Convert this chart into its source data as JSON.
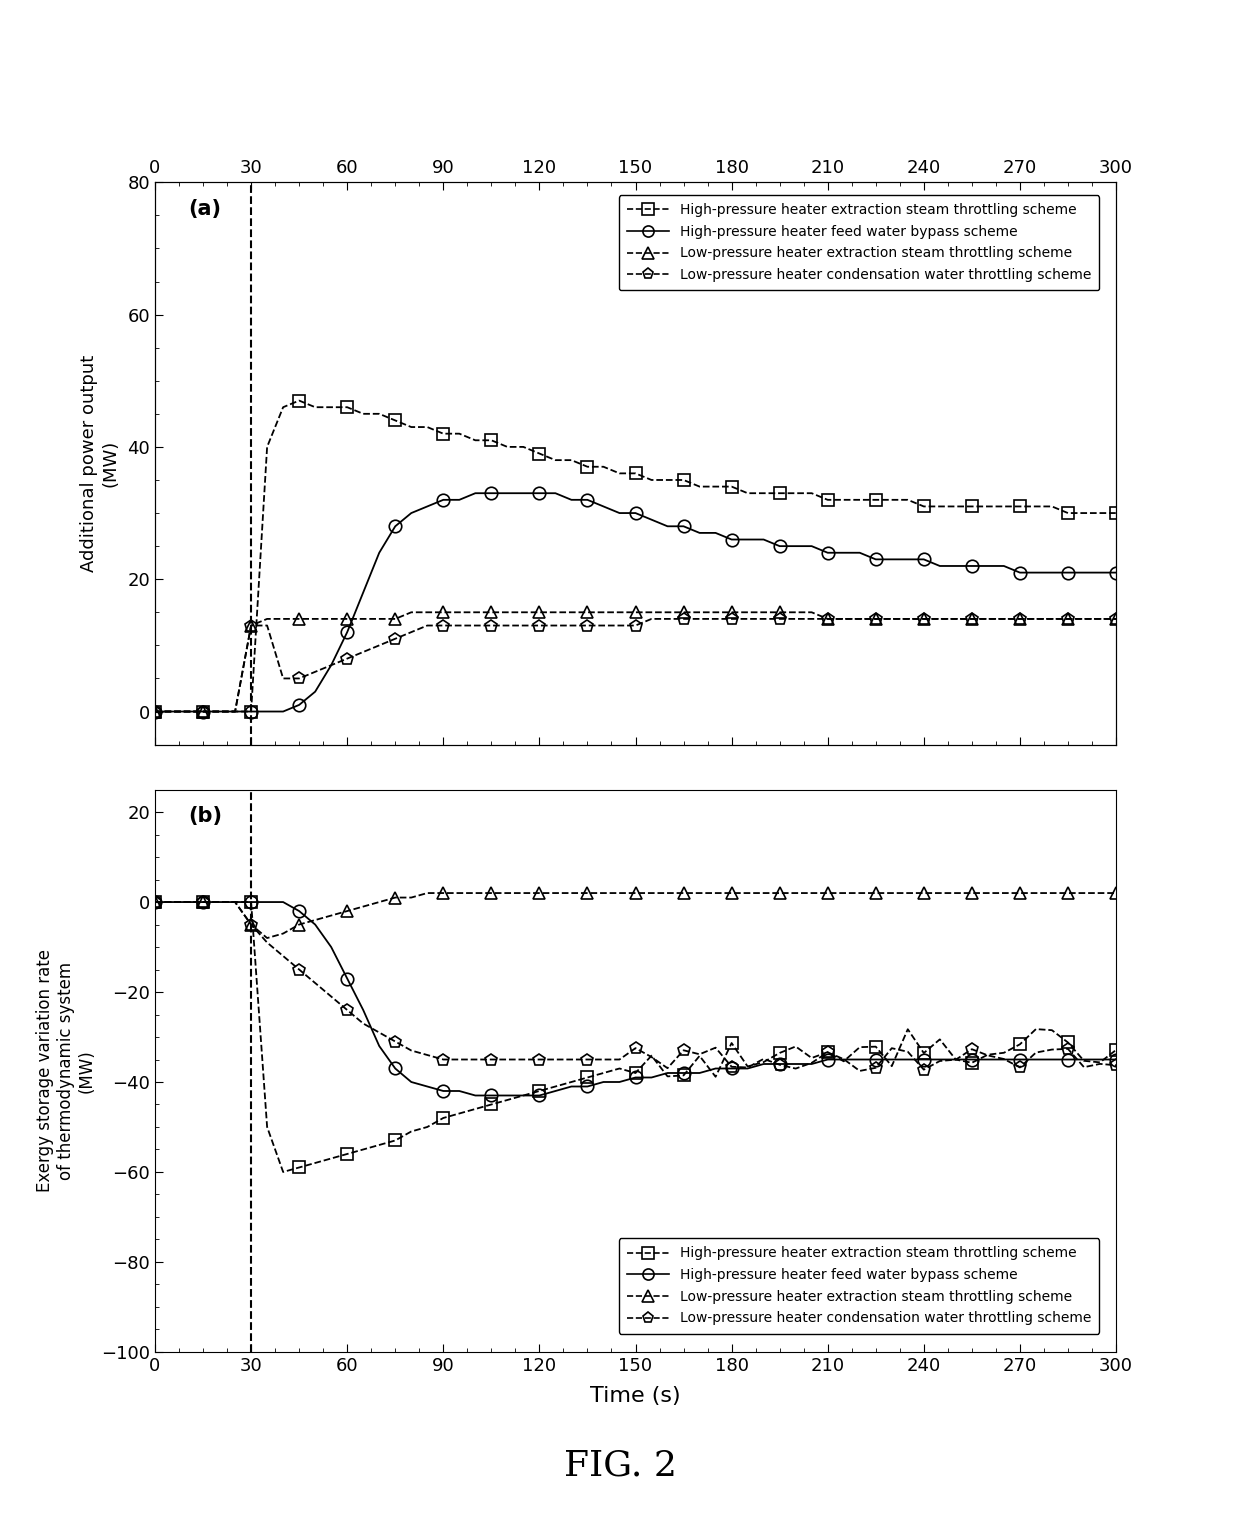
{
  "title_a": "(a)",
  "title_b": "(b)",
  "fig_label": "FIG. 2",
  "xlabel": "Time (s)",
  "ylabel_a": "Additional power output\n(MW)",
  "ylabel_b": "Exergy storage variation rate\nof thermodynamic system\n(MW)",
  "xlim": [
    0,
    300
  ],
  "ylim_a": [
    -5,
    80
  ],
  "ylim_b": [
    -100,
    25
  ],
  "yticks_a": [
    0,
    20,
    40,
    60,
    80
  ],
  "yticks_b": [
    -100,
    -80,
    -60,
    -40,
    -20,
    0,
    20
  ],
  "xticks": [
    0,
    30,
    60,
    90,
    120,
    150,
    180,
    210,
    240,
    270,
    300
  ],
  "dashed_x": 30,
  "legend_labels": [
    "High-pressure heater extraction steam throttling scheme",
    "High-pressure heater feed water bypass scheme",
    "Low-pressure heater extraction steam throttling scheme",
    "Low-pressure heater condensation water throttling scheme"
  ],
  "markers": [
    "s",
    "o",
    "^",
    "p"
  ],
  "linestyles_a": [
    "--",
    "-",
    "--",
    "--"
  ],
  "linestyles_b": [
    "--",
    "-",
    "--",
    "--"
  ],
  "t": [
    0,
    5,
    10,
    15,
    20,
    25,
    30,
    35,
    40,
    45,
    50,
    55,
    60,
    65,
    70,
    75,
    80,
    85,
    90,
    95,
    100,
    105,
    110,
    115,
    120,
    125,
    130,
    135,
    140,
    145,
    150,
    155,
    160,
    165,
    170,
    175,
    180,
    185,
    190,
    195,
    200,
    205,
    210,
    215,
    220,
    225,
    230,
    235,
    240,
    245,
    250,
    255,
    260,
    265,
    270,
    275,
    280,
    285,
    290,
    295,
    300
  ],
  "hp_extract_a": [
    0,
    0,
    0,
    0,
    0,
    0,
    0,
    40,
    46,
    47,
    46,
    46,
    46,
    45,
    45,
    44,
    43,
    43,
    42,
    42,
    41,
    41,
    40,
    40,
    39,
    38,
    38,
    37,
    37,
    36,
    36,
    35,
    35,
    35,
    34,
    34,
    34,
    33,
    33,
    33,
    33,
    33,
    32,
    32,
    32,
    32,
    32,
    32,
    31,
    31,
    31,
    31,
    31,
    31,
    31,
    31,
    31,
    30,
    30,
    30,
    30
  ],
  "hp_feedwater_a": [
    0,
    0,
    0,
    0,
    0,
    0,
    0,
    0,
    0,
    1,
    3,
    7,
    12,
    18,
    24,
    28,
    30,
    31,
    32,
    32,
    33,
    33,
    33,
    33,
    33,
    33,
    32,
    32,
    31,
    30,
    30,
    29,
    28,
    28,
    27,
    27,
    26,
    26,
    26,
    25,
    25,
    25,
    24,
    24,
    24,
    23,
    23,
    23,
    23,
    22,
    22,
    22,
    22,
    22,
    21,
    21,
    21,
    21,
    21,
    21,
    21
  ],
  "lp_extract_a": [
    0,
    0,
    0,
    0,
    0,
    0,
    13,
    14,
    14,
    14,
    14,
    14,
    14,
    14,
    14,
    14,
    15,
    15,
    15,
    15,
    15,
    15,
    15,
    15,
    15,
    15,
    15,
    15,
    15,
    15,
    15,
    15,
    15,
    15,
    15,
    15,
    15,
    15,
    15,
    15,
    15,
    15,
    14,
    14,
    14,
    14,
    14,
    14,
    14,
    14,
    14,
    14,
    14,
    14,
    14,
    14,
    14,
    14,
    14,
    14,
    14
  ],
  "lp_condensate_a": [
    0,
    0,
    0,
    0,
    0,
    0,
    13,
    13,
    5,
    5,
    6,
    7,
    8,
    9,
    10,
    11,
    12,
    13,
    13,
    13,
    13,
    13,
    13,
    13,
    13,
    13,
    13,
    13,
    13,
    13,
    13,
    14,
    14,
    14,
    14,
    14,
    14,
    14,
    14,
    14,
    14,
    14,
    14,
    14,
    14,
    14,
    14,
    14,
    14,
    14,
    14,
    14,
    14,
    14,
    14,
    14,
    14,
    14,
    14,
    14,
    14
  ],
  "hp_extract_b": [
    0,
    0,
    0,
    0,
    0,
    0,
    0,
    -50,
    -60,
    -59,
    -58,
    -57,
    -56,
    -55,
    -54,
    -53,
    -51,
    -50,
    -48,
    -47,
    -46,
    -45,
    -44,
    -43,
    -42,
    -41,
    -40,
    -39,
    -38,
    -37,
    -37,
    -36,
    -36,
    -35,
    -35,
    -35,
    -34,
    -34,
    -34,
    -33,
    -33,
    -33,
    -33,
    -33,
    -33,
    -33,
    -33,
    -32,
    -32,
    -32,
    -32,
    -32,
    -32,
    -32,
    -32,
    -32,
    -32,
    -32,
    -32,
    -32,
    -32
  ],
  "hp_feedwater_b": [
    0,
    0,
    0,
    0,
    0,
    0,
    0,
    0,
    0,
    -2,
    -5,
    -10,
    -17,
    -24,
    -32,
    -37,
    -40,
    -41,
    -42,
    -42,
    -43,
    -43,
    -43,
    -43,
    -43,
    -42,
    -41,
    -41,
    -40,
    -40,
    -39,
    -39,
    -38,
    -38,
    -38,
    -37,
    -37,
    -37,
    -36,
    -36,
    -36,
    -36,
    -35,
    -35,
    -35,
    -35,
    -35,
    -35,
    -35,
    -35,
    -35,
    -35,
    -35,
    -35,
    -35,
    -35,
    -35,
    -35,
    -35,
    -35,
    -35
  ],
  "lp_extract_b": [
    0,
    0,
    0,
    0,
    0,
    0,
    -5,
    -8,
    -7,
    -5,
    -4,
    -3,
    -2,
    -1,
    0,
    1,
    1,
    2,
    2,
    2,
    2,
    2,
    2,
    2,
    2,
    2,
    2,
    2,
    2,
    2,
    2,
    2,
    2,
    2,
    2,
    2,
    2,
    2,
    2,
    2,
    2,
    2,
    2,
    2,
    2,
    2,
    2,
    2,
    2,
    2,
    2,
    2,
    2,
    2,
    2,
    2,
    2,
    2,
    2,
    2,
    2
  ],
  "lp_condensate_b": [
    0,
    0,
    0,
    0,
    0,
    0,
    -5,
    -9,
    -12,
    -15,
    -18,
    -21,
    -24,
    -27,
    -29,
    -31,
    -33,
    -34,
    -35,
    -35,
    -35,
    -35,
    -35,
    -35,
    -35,
    -35,
    -35,
    -35,
    -35,
    -35,
    -35,
    -35,
    -35,
    -35,
    -35,
    -35,
    -35,
    -35,
    -35,
    -35,
    -35,
    -35,
    -35,
    -35,
    -35,
    -35,
    -35,
    -35,
    -35,
    -35,
    -35,
    -35,
    -35,
    -35,
    -35,
    -35,
    -35,
    -35,
    -35,
    -35,
    -35
  ]
}
